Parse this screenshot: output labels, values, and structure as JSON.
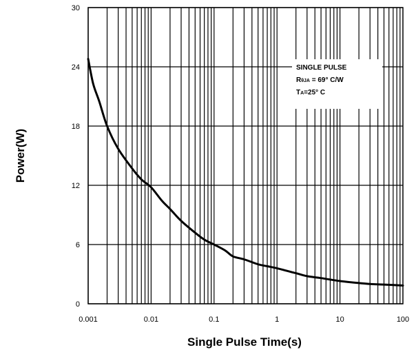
{
  "chart_data": {
    "type": "line",
    "title": "",
    "xlabel": "Single Pulse Time(s)",
    "ylabel": "Power(W)",
    "x_scale": "log",
    "xlim": [
      0.001,
      100
    ],
    "ylim": [
      0,
      30
    ],
    "x_ticks": [
      "0.001",
      "0.01",
      "0.1",
      "1",
      "10",
      "100"
    ],
    "y_ticks": [
      "0",
      "6",
      "12",
      "18",
      "24",
      "30"
    ],
    "grid": true,
    "series": [
      {
        "x": [
          0.001,
          0.0012,
          0.0015,
          0.002,
          0.003,
          0.005,
          0.007,
          0.01,
          0.015,
          0.02,
          0.03,
          0.05,
          0.07,
          0.1,
          0.15,
          0.2,
          0.3,
          0.5,
          0.7,
          1,
          2,
          3,
          5,
          10,
          20,
          30,
          50,
          100
        ],
        "y": [
          24.8,
          22.3,
          20.5,
          18.0,
          15.7,
          13.7,
          12.6,
          11.8,
          10.4,
          9.6,
          8.4,
          7.2,
          6.5,
          6.0,
          5.4,
          4.8,
          4.5,
          4.0,
          3.8,
          3.6,
          3.1,
          2.8,
          2.6,
          2.3,
          2.1,
          2.0,
          1.95,
          1.85
        ]
      }
    ],
    "annotation": {
      "line1": "SINGLE PULSE",
      "line2_main": "R",
      "line2_sub": "θJA",
      "line2_rest": " = 69° C/W",
      "line3_main": "T",
      "line3_sub": "A",
      "line3_rest": "=25° C"
    }
  }
}
